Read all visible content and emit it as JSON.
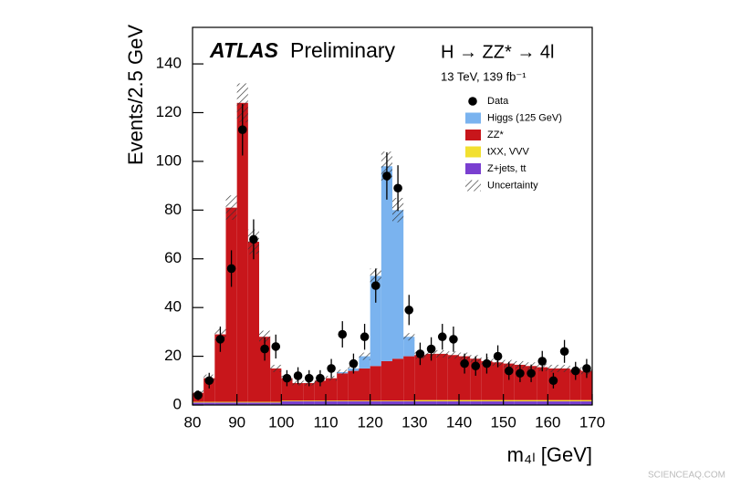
{
  "chart_data": {
    "type": "stacked-histogram",
    "experiment": "ATLAS",
    "status": "Preliminary",
    "process": "H → ZZ* → 4l",
    "energy_label": "13 TeV, 139 fb⁻¹",
    "x_label": "m₄ₗ [GeV]",
    "y_label": "Events/2.5 GeV",
    "watermark": "SCIENCEAQ.COM",
    "bins": [
      80,
      82.5,
      85,
      87.5,
      90,
      92.5,
      95,
      97.5,
      100,
      102.5,
      105,
      107.5,
      110,
      112.5,
      115,
      117.5,
      120,
      122.5,
      125,
      127.5,
      130,
      132.5,
      135,
      137.5,
      140,
      142.5,
      145,
      147.5,
      150,
      152.5,
      155,
      157.5,
      160,
      162.5,
      165,
      167.5,
      170
    ],
    "series": [
      {
        "name": "Z+jets, tt",
        "color": "#7a3fd0",
        "values": [
          1,
          1,
          1,
          1,
          1,
          1,
          1,
          1,
          1.5,
          1.5,
          1.5,
          1.5,
          1.5,
          1.5,
          1.5,
          1.5,
          1.5,
          1.5,
          1.5,
          1.5,
          1.5,
          1.5,
          1.5,
          1.5,
          1.5,
          1.5,
          1.5,
          1.5,
          1.5,
          1.5,
          1.5,
          1.5,
          1.5,
          1.5,
          1.5,
          1.5
        ]
      },
      {
        "name": "tXX, VVV",
        "color": "#f2e030",
        "values": [
          0.3,
          0.3,
          0.3,
          0.3,
          0.3,
          0.3,
          0.3,
          0.3,
          0.3,
          0.3,
          0.3,
          0.3,
          0.3,
          0.3,
          0.3,
          0.3,
          0.3,
          0.3,
          0.3,
          0.3,
          0.5,
          0.5,
          0.5,
          0.5,
          0.5,
          0.5,
          0.5,
          0.5,
          0.5,
          0.5,
          0.5,
          0.5,
          0.5,
          0.5,
          0.5,
          0.5
        ]
      },
      {
        "name": "ZZ*",
        "color": "#c8161b",
        "values": [
          3.7,
          9.7,
          27.7,
          79.7,
          122.7,
          65.7,
          26.7,
          13.7,
          9.2,
          7.2,
          7.2,
          8.2,
          9.2,
          11.2,
          12.2,
          13.2,
          14.2,
          16.2,
          17.2,
          18.2,
          18.5,
          19,
          19,
          18.5,
          18,
          17,
          16,
          15.5,
          15,
          14.5,
          14,
          13.5,
          13,
          13,
          12.5,
          12
        ]
      },
      {
        "name": "Higgs (125 GeV)",
        "color": "#7ab3ef",
        "values": [
          0,
          0,
          0,
          0,
          0,
          0,
          0,
          0,
          0,
          0,
          0,
          0,
          0,
          0.5,
          1,
          5,
          37,
          80,
          61,
          8,
          0,
          0,
          0,
          0,
          0,
          0,
          0,
          0,
          0,
          0,
          0,
          0,
          0,
          0,
          0,
          0
        ]
      }
    ],
    "data": {
      "name": "Data",
      "color": "#000000",
      "values": [
        4,
        10,
        27,
        56,
        113,
        68,
        23,
        24,
        11,
        12,
        11,
        11,
        15,
        29,
        17,
        28,
        49,
        94,
        89,
        39,
        21,
        23,
        28,
        27,
        17,
        16,
        17,
        20,
        14,
        13,
        13,
        18,
        10,
        22,
        14,
        15
      ],
      "errors": [
        2,
        3.2,
        5.2,
        7.5,
        10.6,
        8.2,
        4.8,
        4.9,
        3.3,
        3.5,
        3.3,
        3.3,
        3.9,
        5.4,
        4.1,
        5.3,
        7,
        9.7,
        9.4,
        6.2,
        4.6,
        4.8,
        5.3,
        5.2,
        4.1,
        4,
        4.1,
        4.5,
        3.7,
        3.6,
        3.6,
        4.2,
        3.2,
        4.7,
        3.7,
        3.9
      ]
    },
    "uncertainty": {
      "name": "Uncertainty",
      "values": [
        1,
        1.5,
        2.5,
        5,
        8,
        5,
        2.5,
        1.5,
        1,
        1,
        1,
        1,
        1,
        1,
        1,
        1.5,
        3,
        6,
        5,
        1.5,
        1.5,
        1.5,
        1.5,
        1.5,
        1.5,
        1.5,
        1.5,
        1.5,
        1.5,
        1.5,
        1.5,
        1.5,
        1.5,
        1.5,
        1.5,
        1.5
      ]
    },
    "xlim": [
      80,
      170
    ],
    "ylim": [
      0,
      155
    ],
    "xticks": [
      80,
      90,
      100,
      110,
      120,
      130,
      140,
      150,
      160,
      170
    ],
    "yticks": [
      0,
      20,
      40,
      60,
      80,
      100,
      120,
      140
    ]
  }
}
